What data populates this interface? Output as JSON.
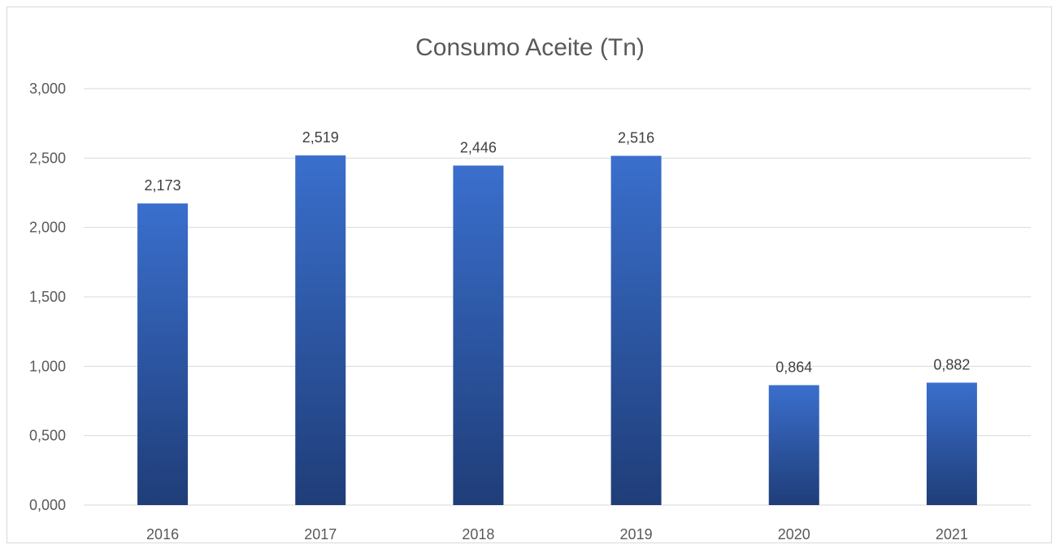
{
  "chart_data": {
    "type": "bar",
    "title": "Consumo Aceite (Tn)",
    "xlabel": "",
    "ylabel": "",
    "categories": [
      "2016",
      "2017",
      "2018",
      "2019",
      "2020",
      "2021"
    ],
    "values": [
      2.173,
      2.519,
      2.446,
      2.516,
      0.864,
      0.882
    ],
    "value_labels": [
      "2,173",
      "2,519",
      "2,446",
      "2,516",
      "0,864",
      "0,882"
    ],
    "ylim": [
      0,
      3
    ],
    "yticks": [
      0,
      0.5,
      1,
      1.5,
      2,
      2.5,
      3
    ],
    "ytick_labels": [
      "0,000",
      "0,500",
      "1,000",
      "1,500",
      "2,000",
      "2,500",
      "3,000"
    ],
    "grid": true,
    "legend": "none",
    "colors": {
      "bar_top": "#3a6fcd",
      "bar_bottom": "#1f3d78",
      "grid": "#d9d9d9",
      "text": "#595959"
    }
  }
}
